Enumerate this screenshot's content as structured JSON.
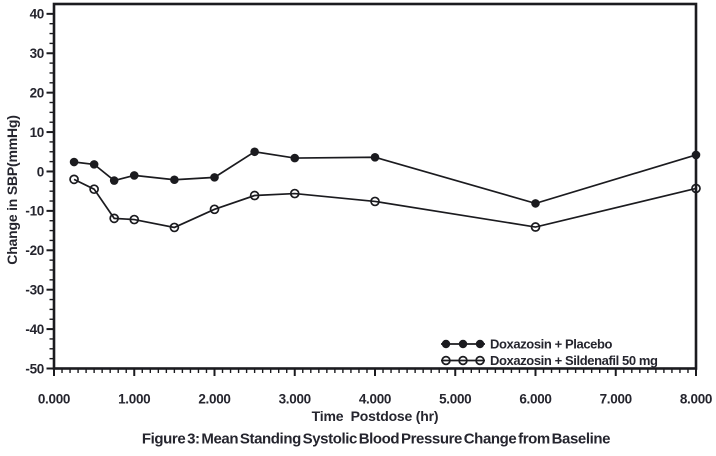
{
  "figure": {
    "caption": "Figure 3: Mean Standing Systolic Blood Pressure Change from Baseline"
  },
  "chart_data": {
    "type": "line",
    "title": "Figure 3: Mean Standing Systolic Blood Pressure Change from Baseline",
    "xlabel": "Time  Postdose (hr)",
    "ylabel": "Change in SBP(mmHg)",
    "xlim": [
      0,
      8
    ],
    "ylim": [
      -50,
      42.5
    ],
    "grid": false,
    "legend_position": "inside-bottom-right",
    "x_major_ticks": [
      0,
      1,
      2,
      3,
      4,
      5,
      6,
      7,
      8
    ],
    "x_tick_labels": [
      "0.000",
      "1.000",
      "2.000",
      "3.000",
      "4.000",
      "5.000",
      "6.000",
      "7.000",
      "8.000"
    ],
    "x_minor_step": 0.1,
    "y_major_ticks": [
      40,
      30,
      20,
      10,
      0,
      -10,
      -20,
      -30,
      -40,
      -50
    ],
    "y_tick_labels": [
      "40",
      "30",
      "20",
      "10",
      "0",
      "-10",
      "-20",
      "-30",
      "-40",
      "-50"
    ],
    "y_minor_step": 2.5,
    "x": [
      0.25,
      0.5,
      0.75,
      1.0,
      1.5,
      2.0,
      2.5,
      3.0,
      4.0,
      6.0,
      8.0
    ],
    "series": [
      {
        "name": "Doxazosin + Placebo",
        "marker": "filled-circle",
        "values": [
          2.4,
          1.8,
          -2.3,
          -1.0,
          -2.1,
          -1.5,
          5.0,
          3.4,
          3.6,
          -8.1,
          4.2
        ]
      },
      {
        "name": "Doxazosin + Sildenafil 50 mg",
        "marker": "open-circle",
        "values": [
          -2.0,
          -4.5,
          -11.9,
          -12.2,
          -14.2,
          -9.6,
          -6.1,
          -5.6,
          -7.6,
          -14.1,
          -4.3
        ]
      }
    ],
    "colors": {
      "ink": "#1b1b1f",
      "text": "#25252e",
      "background": "#ffffff"
    }
  }
}
